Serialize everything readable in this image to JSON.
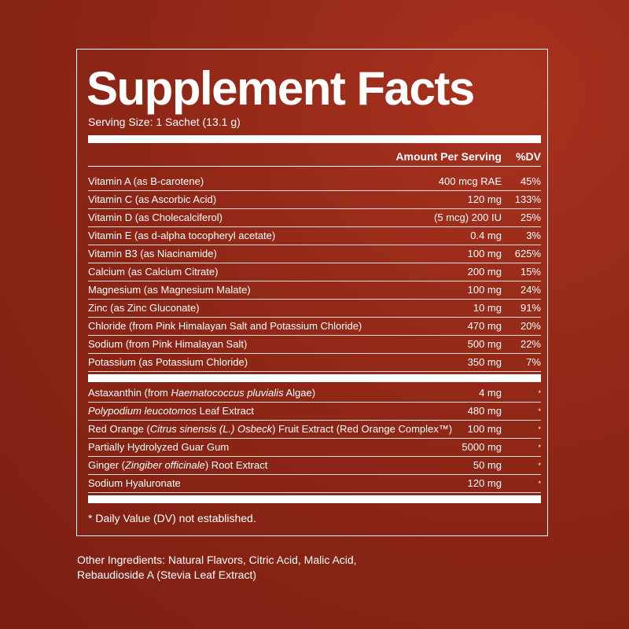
{
  "title": "Supplement Facts",
  "serving_size": "Serving Size: 1 Sachet (13.1 g)",
  "header": {
    "amount": "Amount Per Serving",
    "dv": "%DV"
  },
  "nutrients": [
    {
      "name": [
        "Vitamin A (as B-carotene)"
      ],
      "amount": "400 mcg RAE",
      "dv": "45%"
    },
    {
      "name": [
        "Vitamin C (as Ascorbic Acid)"
      ],
      "amount": "120 mg",
      "dv": "133%"
    },
    {
      "name": [
        "Vitamin D (as Cholecalciferol)"
      ],
      "amount": "(5 mcg) 200 IU",
      "dv": "25%"
    },
    {
      "name": [
        "Vitamin E (as d-alpha tocopheryl acetate)"
      ],
      "amount": "0.4 mg",
      "dv": "3%"
    },
    {
      "name": [
        "Vitamin B3 (as Niacinamide)"
      ],
      "amount": "100 mg",
      "dv": "625%"
    },
    {
      "name": [
        "Calcium (as Calcium Citrate)"
      ],
      "amount": "200 mg",
      "dv": "15%"
    },
    {
      "name": [
        "Magnesium (as Magnesium Malate)"
      ],
      "amount": "100 mg",
      "dv": "24%"
    },
    {
      "name": [
        "Zinc (as Zinc Gluconate)"
      ],
      "amount": "10 mg",
      "dv": "91%"
    },
    {
      "name": [
        "Chloride (from Pink Himalayan Salt and Potassium Chloride)"
      ],
      "amount": "470 mg",
      "dv": "20%"
    },
    {
      "name": [
        "Sodium (from Pink Himalayan Salt)"
      ],
      "amount": "500 mg",
      "dv": "22%"
    },
    {
      "name": [
        "Potassium (as Potassium Chloride)"
      ],
      "amount": "350 mg",
      "dv": "7%"
    }
  ],
  "other_nutrients": [
    {
      "name": [
        "Astaxanthin (from ",
        {
          "italic": "Haematococcus pluvialis"
        },
        " Algae)"
      ],
      "amount": "4 mg",
      "dv": "*"
    },
    {
      "name": [
        {
          "italic": "Polypodium leucotomos"
        },
        " Leaf Extract"
      ],
      "amount": "480 mg",
      "dv": "*"
    },
    {
      "name": [
        "Red Orange (",
        {
          "italic": "Citrus sinensis (L.) Osbeck"
        },
        ") Fruit Extract (Red Orange Complex™)"
      ],
      "amount": "100 mg",
      "dv": "*"
    },
    {
      "name": [
        "Partially Hydrolyzed Guar Gum"
      ],
      "amount": "5000 mg",
      "dv": "*"
    },
    {
      "name": [
        "Ginger (",
        {
          "italic": "Zingiber officinale"
        },
        ") Root Extract"
      ],
      "amount": "50 mg",
      "dv": "*"
    },
    {
      "name": [
        "Sodium Hyaluronate"
      ],
      "amount": "120 mg",
      "dv": "*"
    }
  ],
  "footnote": "* Daily Value (DV) not established.",
  "other_ingredients": [
    "Other Ingredients: Natural Flavors, Citric Acid, Malic Acid,",
    "Rebaudioside A (Stevia Leaf Extract)"
  ]
}
